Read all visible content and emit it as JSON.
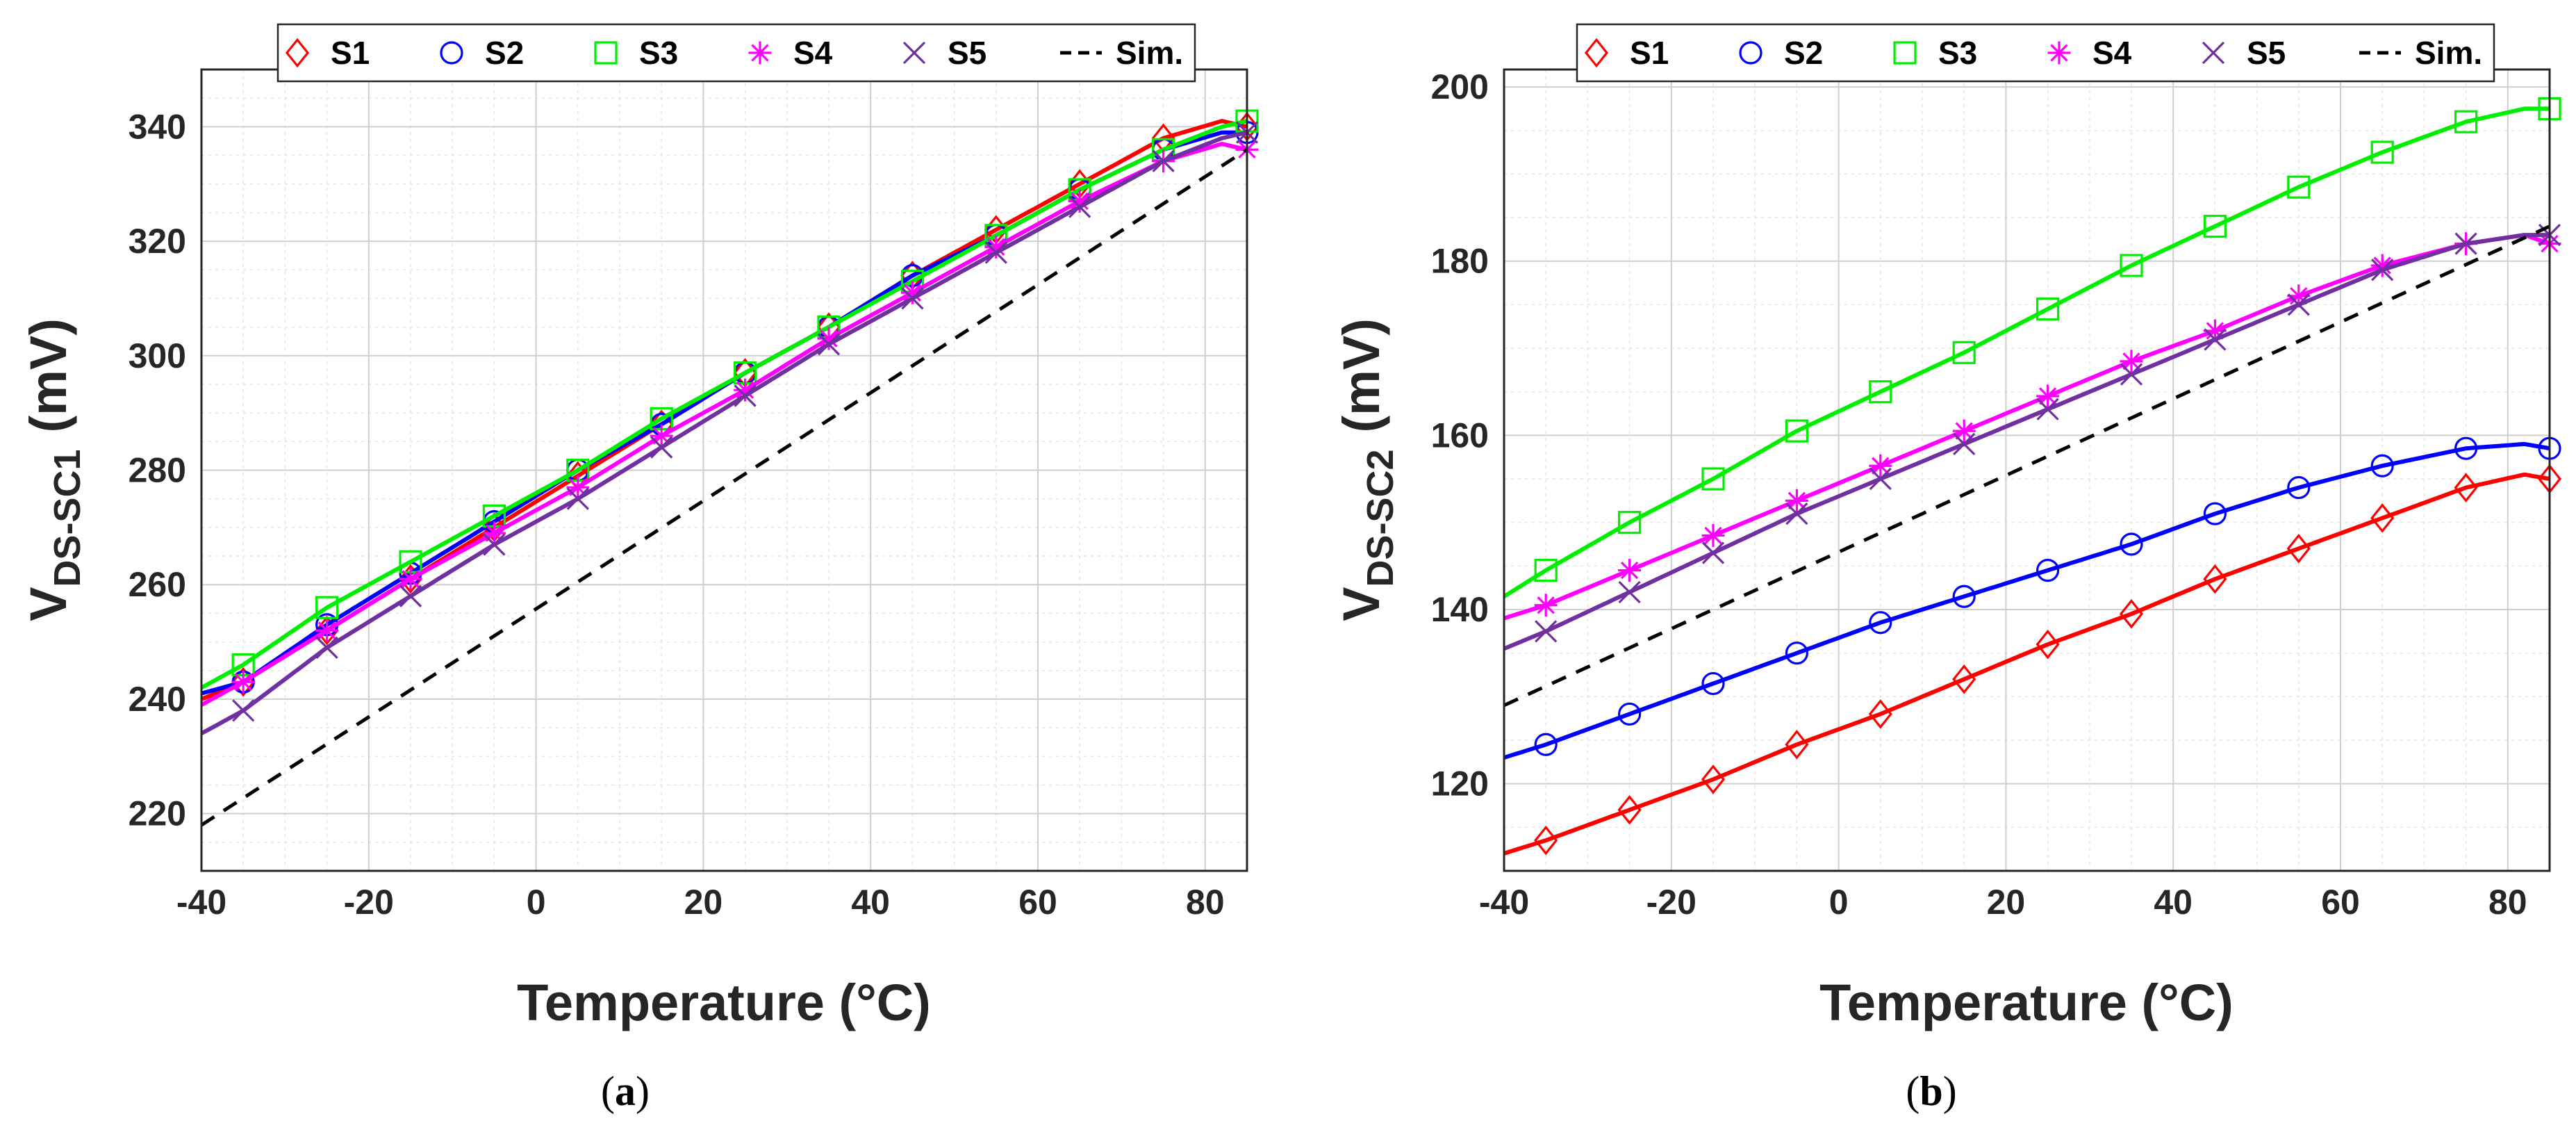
{
  "chart_data": [
    {
      "type": "line",
      "panel_label": "a",
      "title": "",
      "xlabel": "Temperature (°C)",
      "ylabel_main": "V",
      "ylabel_sub": "DS-SC1",
      "ylabel_unit": "(mV)",
      "xlim": [
        -40,
        85
      ],
      "ylim": [
        210,
        350
      ],
      "xticks": [
        -40,
        -20,
        0,
        20,
        40,
        60,
        80
      ],
      "yticks": [
        220,
        240,
        260,
        280,
        300,
        320,
        340
      ],
      "xtick_labels": [
        "-40",
        "-20",
        "0",
        "20",
        "40",
        "60",
        "80"
      ],
      "ytick_labels": [
        "220",
        "240",
        "260",
        "280",
        "300",
        "320",
        "340"
      ],
      "grid": true,
      "legend_position": "top",
      "marker_x": [
        -35,
        -25,
        -15,
        -5,
        5,
        15,
        25,
        35,
        45,
        55,
        65,
        75,
        85
      ],
      "series": [
        {
          "name": "S1",
          "color": "#ff0000",
          "marker": "diamond",
          "style": "solid",
          "x": [
            -40,
            -35,
            -25,
            -15,
            -5,
            5,
            15,
            25,
            35,
            45,
            55,
            65,
            75,
            82,
            85
          ],
          "values": [
            240,
            243,
            252,
            261,
            270,
            279,
            288,
            297,
            305,
            314,
            322,
            330,
            338,
            341,
            340
          ]
        },
        {
          "name": "S2",
          "color": "#0000ff",
          "marker": "circle",
          "style": "solid",
          "x": [
            -40,
            -35,
            -25,
            -15,
            -5,
            5,
            15,
            25,
            35,
            45,
            55,
            65,
            75,
            82,
            85
          ],
          "values": [
            241,
            243,
            253,
            262,
            271,
            280,
            288,
            297,
            305,
            314,
            321,
            329,
            336,
            339,
            339
          ]
        },
        {
          "name": "S3",
          "color": "#00ee00",
          "marker": "square",
          "style": "solid",
          "x": [
            -40,
            -35,
            -25,
            -15,
            -5,
            5,
            15,
            25,
            35,
            45,
            55,
            65,
            75,
            82,
            85
          ],
          "values": [
            242,
            246,
            256,
            264,
            272,
            280,
            289,
            297,
            305,
            313,
            321,
            329,
            336,
            340,
            341
          ]
        },
        {
          "name": "S4",
          "color": "#ff00ff",
          "marker": "asterisk",
          "style": "solid",
          "x": [
            -40,
            -35,
            -25,
            -15,
            -5,
            5,
            15,
            25,
            35,
            45,
            55,
            65,
            75,
            82,
            85
          ],
          "values": [
            239,
            243,
            252,
            261,
            269,
            277,
            286,
            294,
            303,
            311,
            319,
            327,
            334,
            337,
            336
          ]
        },
        {
          "name": "S5",
          "color": "#7030a0",
          "marker": "x",
          "style": "solid",
          "x": [
            -40,
            -35,
            -25,
            -15,
            -5,
            5,
            15,
            25,
            35,
            45,
            55,
            65,
            75,
            82,
            85
          ],
          "values": [
            234,
            238,
            249,
            258,
            267,
            275,
            284,
            293,
            302,
            310,
            318,
            326,
            334,
            338,
            339
          ]
        },
        {
          "name": "Sim.",
          "color": "#000000",
          "marker": "none",
          "style": "dashed",
          "x": [
            -40,
            85
          ],
          "values": [
            218,
            336
          ]
        }
      ]
    },
    {
      "type": "line",
      "panel_label": "b",
      "title": "",
      "xlabel": "Temperature (°C)",
      "ylabel_main": "V",
      "ylabel_sub": "DS-SC2",
      "ylabel_unit": "(mV)",
      "xlim": [
        -40,
        85
      ],
      "ylim": [
        110,
        202
      ],
      "xticks": [
        -40,
        -20,
        0,
        20,
        40,
        60,
        80
      ],
      "yticks": [
        120,
        140,
        160,
        180,
        200
      ],
      "xtick_labels": [
        "-40",
        "-20",
        "0",
        "20",
        "40",
        "60",
        "80"
      ],
      "ytick_labels": [
        "120",
        "140",
        "160",
        "180",
        "200"
      ],
      "grid": true,
      "legend_position": "top",
      "marker_x": [
        -35,
        -25,
        -15,
        -5,
        5,
        15,
        25,
        35,
        45,
        55,
        65,
        75,
        85
      ],
      "series": [
        {
          "name": "S1",
          "color": "#ff0000",
          "marker": "diamond",
          "style": "solid",
          "x": [
            -40,
            -35,
            -25,
            -15,
            -5,
            5,
            15,
            25,
            35,
            45,
            55,
            65,
            75,
            82,
            85
          ],
          "values": [
            112,
            113.5,
            117,
            120.5,
            124.5,
            128,
            132,
            136,
            139.5,
            143.5,
            147,
            150.5,
            154,
            155.5,
            155
          ]
        },
        {
          "name": "S2",
          "color": "#0000ff",
          "marker": "circle",
          "style": "solid",
          "x": [
            -40,
            -35,
            -25,
            -15,
            -5,
            5,
            15,
            25,
            35,
            45,
            55,
            65,
            75,
            82,
            85
          ],
          "values": [
            123,
            124.5,
            128,
            131.5,
            135,
            138.5,
            141.5,
            144.5,
            147.5,
            151,
            154,
            156.5,
            158.5,
            159,
            158.5
          ]
        },
        {
          "name": "S3",
          "color": "#00ee00",
          "marker": "square",
          "style": "solid",
          "x": [
            -40,
            -35,
            -25,
            -15,
            -5,
            5,
            15,
            25,
            35,
            45,
            55,
            65,
            75,
            82,
            85
          ],
          "values": [
            141.5,
            144.5,
            150,
            155,
            160.5,
            165,
            169.5,
            174.5,
            179.5,
            184,
            188.5,
            192.5,
            196,
            197.5,
            197.5
          ]
        },
        {
          "name": "S4",
          "color": "#ff00ff",
          "marker": "asterisk",
          "style": "solid",
          "x": [
            -40,
            -35,
            -25,
            -15,
            -5,
            5,
            15,
            25,
            35,
            45,
            55,
            65,
            75,
            82,
            85
          ],
          "values": [
            139,
            140.5,
            144.5,
            148.5,
            152.5,
            156.5,
            160.5,
            164.5,
            168.5,
            172,
            176,
            179.5,
            182,
            183,
            182
          ]
        },
        {
          "name": "S5",
          "color": "#7030a0",
          "marker": "x",
          "style": "solid",
          "x": [
            -40,
            -35,
            -25,
            -15,
            -5,
            5,
            15,
            25,
            35,
            45,
            55,
            65,
            75,
            82,
            85
          ],
          "values": [
            135.5,
            137.5,
            142,
            146.5,
            151,
            155,
            159,
            163,
            167,
            171,
            175,
            179,
            182,
            183,
            183
          ]
        },
        {
          "name": "Sim.",
          "color": "#000000",
          "marker": "none",
          "style": "dashed",
          "x": [
            -40,
            85
          ],
          "values": [
            129,
            184
          ]
        }
      ]
    }
  ]
}
